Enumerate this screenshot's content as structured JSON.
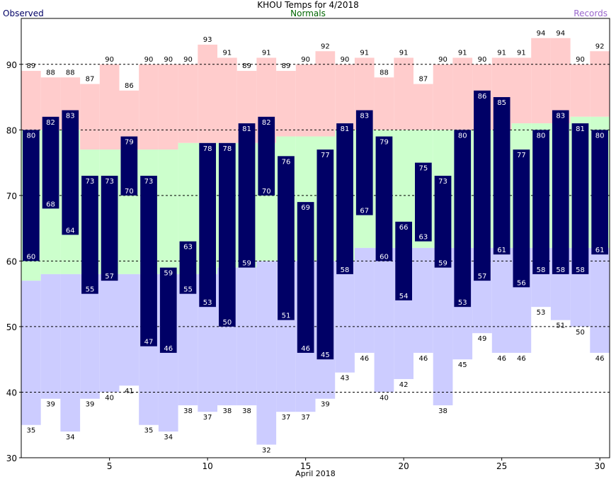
{
  "chart_data": {
    "type": "bar",
    "title": "KHOU Temps for 4/2018",
    "legend": {
      "observed": "Observed",
      "normals": "Normals",
      "records": "Records"
    },
    "xlabel": "April 2018",
    "ylim": [
      30,
      97
    ],
    "yticks": [
      30,
      40,
      50,
      60,
      70,
      80,
      90
    ],
    "xticks": [
      5,
      10,
      15,
      20,
      25,
      30
    ],
    "days": [
      1,
      2,
      3,
      4,
      5,
      6,
      7,
      8,
      9,
      10,
      11,
      12,
      13,
      14,
      15,
      16,
      17,
      18,
      19,
      20,
      21,
      22,
      23,
      24,
      25,
      26,
      27,
      28,
      29,
      30
    ],
    "series": [
      {
        "name": "Observed",
        "key": "observed_high",
        "values": [
          80,
          82,
          83,
          73,
          73,
          79,
          73,
          59,
          63,
          78,
          78,
          81,
          82,
          76,
          69,
          77,
          81,
          83,
          79,
          66,
          75,
          73,
          80,
          86,
          85,
          77,
          80,
          83,
          81,
          80
        ]
      },
      {
        "name": "Observed",
        "key": "observed_low",
        "values": [
          60,
          68,
          64,
          55,
          57,
          70,
          47,
          46,
          55,
          53,
          50,
          59,
          70,
          51,
          46,
          45,
          58,
          67,
          60,
          54,
          63,
          59,
          53,
          57,
          61,
          56,
          58,
          58,
          58,
          61
        ]
      },
      {
        "name": "Records",
        "key": "record_high",
        "values": [
          89,
          88,
          88,
          87,
          90,
          86,
          90,
          90,
          90,
          93,
          91,
          89,
          91,
          89,
          90,
          92,
          90,
          91,
          88,
          91,
          87,
          90,
          91,
          90,
          91,
          91,
          94,
          94,
          90,
          92
        ]
      },
      {
        "name": "Records",
        "key": "record_low",
        "values": [
          35,
          39,
          34,
          39,
          40,
          41,
          35,
          34,
          38,
          37,
          38,
          38,
          32,
          37,
          37,
          39,
          43,
          46,
          40,
          42,
          46,
          38,
          45,
          49,
          46,
          46,
          53,
          51,
          50,
          46
        ]
      },
      {
        "name": "Normals",
        "key": "normal_high",
        "values": [
          80,
          80,
          80,
          77,
          77,
          77,
          77,
          77,
          78,
          78,
          78,
          78,
          78,
          79,
          79,
          79,
          80,
          80,
          80,
          80,
          80,
          80,
          80,
          80,
          80,
          81,
          81,
          81,
          82,
          82
        ]
      },
      {
        "name": "Normals",
        "key": "normal_low",
        "values": [
          57,
          58,
          58,
          58,
          58,
          58,
          58,
          58,
          58,
          58,
          59,
          59,
          60,
          60,
          60,
          60,
          60,
          62,
          62,
          62,
          62,
          62,
          62,
          62,
          62,
          62,
          62,
          62,
          62,
          62
        ]
      }
    ],
    "colors": {
      "observed": "#000066",
      "normals": "#ccffcc",
      "record_high_band": "#ffcccc",
      "record_low_band": "#ccccff",
      "title": "#000000",
      "legend_observed": "#000066",
      "legend_normals": "#006600",
      "legend_records": "#9966cc"
    },
    "grid": "dashed horizontal",
    "legend_placement": "top"
  }
}
